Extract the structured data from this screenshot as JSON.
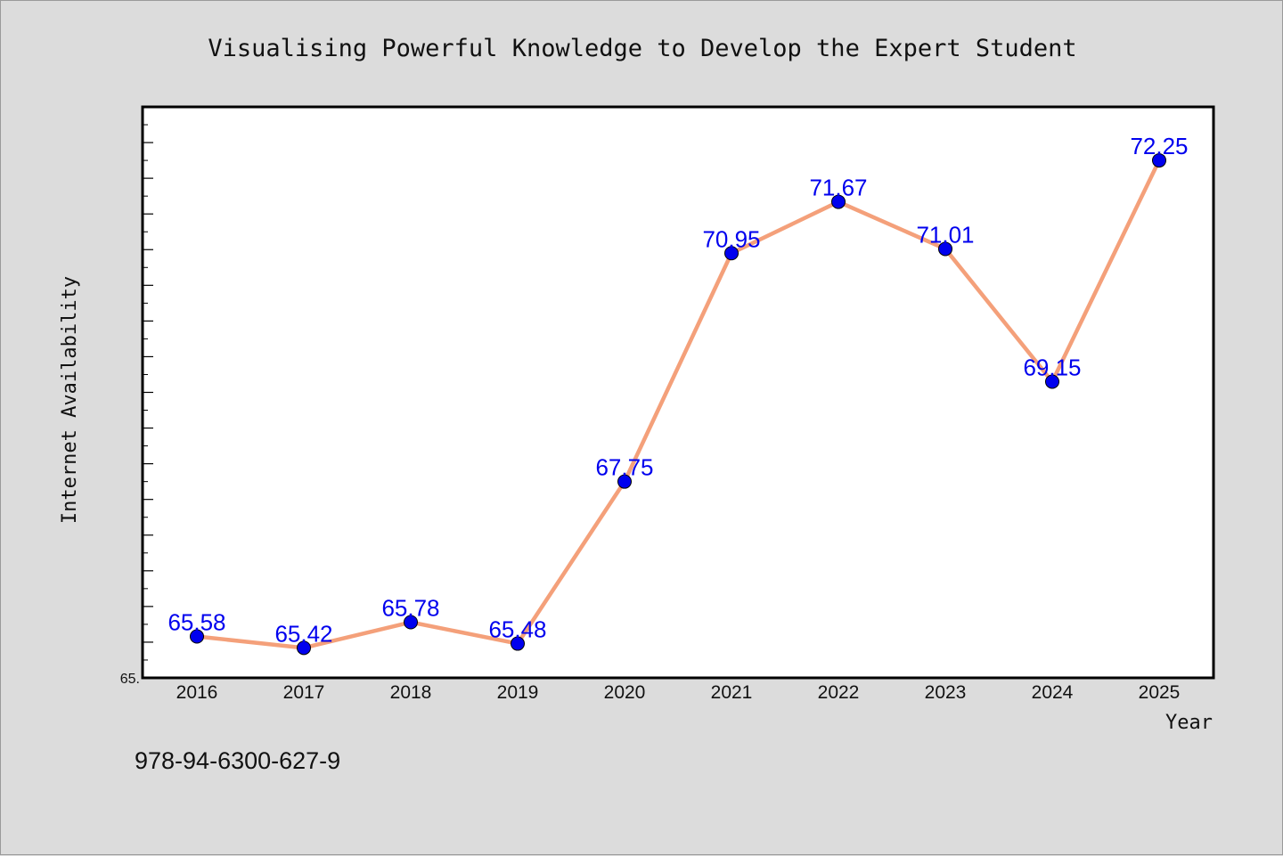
{
  "chart_data": {
    "type": "line",
    "title": "Visualising Powerful Knowledge to Develop the Expert Student",
    "xlabel": "Year",
    "ylabel": "Internet Availability",
    "ymin_label": "65.",
    "x": [
      "2016",
      "2017",
      "2018",
      "2019",
      "2020",
      "2021",
      "2022",
      "2023",
      "2024",
      "2025"
    ],
    "series": [
      {
        "values": [
          65.58,
          65.42,
          65.78,
          65.48,
          67.75,
          70.95,
          71.67,
          71.01,
          69.15,
          72.25
        ],
        "labels": [
          "65.58",
          "65.42",
          "65.78",
          "65.48",
          "67.75",
          "70.95",
          "71.67",
          "71.01",
          "69.15",
          "72.25"
        ],
        "line_color": "#f4a07a",
        "marker_color": "#0000ee",
        "label_color": "#0000ee"
      }
    ],
    "ylim": [
      65.0,
      73.0
    ],
    "grid": false,
    "legend": "none"
  },
  "footer": {
    "isbn": "978-94-6300-627-9"
  }
}
